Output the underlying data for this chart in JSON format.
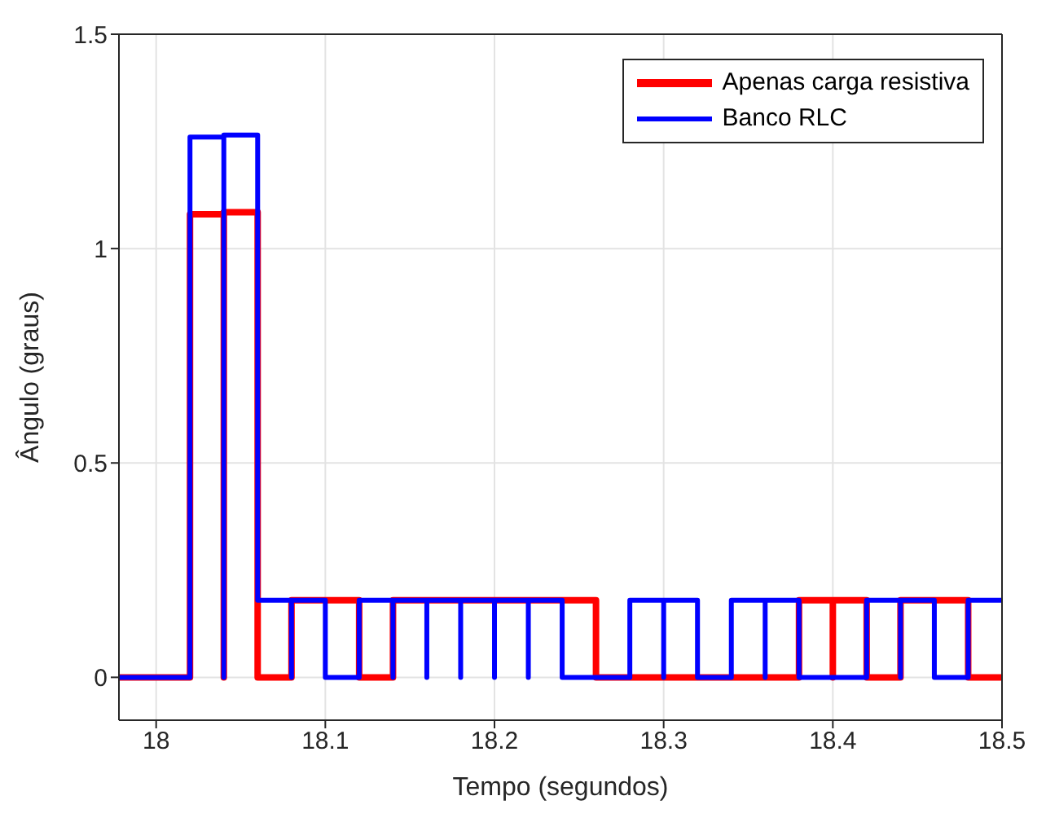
{
  "chart_data": {
    "type": "line",
    "xlabel": "Tempo (segundos)",
    "ylabel": "Ângulo (graus)",
    "xlim": [
      17.978,
      18.5
    ],
    "xticks": [
      18,
      18.1,
      18.2,
      18.3,
      18.4,
      18.5
    ],
    "ylim": [
      -0.1,
      1.5
    ],
    "yticks": [
      0,
      0.5,
      1,
      1.5
    ],
    "grid": true,
    "legend": "top right",
    "marker": "none",
    "line_style": "solid",
    "series": [
      {
        "name": "Apenas carga resistiva",
        "color": "#ff0000",
        "x": [
          17.978,
          18.02,
          18.02,
          18.04,
          18.04,
          18.04,
          18.06,
          18.06,
          18.08,
          18.08,
          18.12,
          18.12,
          18.14,
          18.14,
          18.26,
          18.26,
          18.38,
          18.38,
          18.4,
          18.4,
          18.4,
          18.42,
          18.42,
          18.44,
          18.44,
          18.48,
          18.48,
          18.5
        ],
        "values": [
          0,
          0,
          1.08,
          1.08,
          0,
          1.085,
          1.085,
          0,
          0,
          0.18,
          0.18,
          0,
          0,
          0.18,
          0.18,
          0,
          0,
          0.18,
          0.18,
          0,
          0.18,
          0.18,
          0,
          0,
          0.18,
          0.18,
          0,
          0
        ]
      },
      {
        "name": "Banco RLC",
        "color": "#0000ff",
        "x": [
          17.978,
          18.02,
          18.02,
          18.04,
          18.04,
          18.04,
          18.06,
          18.06,
          18.08,
          18.08,
          18.08,
          18.1,
          18.1,
          18.12,
          18.12,
          18.14,
          18.14,
          18.14,
          18.16,
          18.16,
          18.16,
          18.18,
          18.18,
          18.18,
          18.2,
          18.2,
          18.2,
          18.22,
          18.22,
          18.22,
          18.24,
          18.24,
          18.28,
          18.28,
          18.3,
          18.3,
          18.3,
          18.32,
          18.32,
          18.34,
          18.34,
          18.36,
          18.36,
          18.36,
          18.38,
          18.38,
          18.42,
          18.42,
          18.44,
          18.44,
          18.44,
          18.46,
          18.46,
          18.48,
          18.48,
          18.5
        ],
        "values": [
          0,
          0,
          1.26,
          1.26,
          0,
          1.265,
          1.265,
          0.18,
          0.18,
          0,
          0.18,
          0.18,
          0,
          0,
          0.18,
          0.18,
          0,
          0.18,
          0.18,
          0,
          0.18,
          0.18,
          0,
          0.18,
          0.18,
          0,
          0.18,
          0.18,
          0,
          0.18,
          0.18,
          0,
          0,
          0.18,
          0.18,
          0,
          0.18,
          0.18,
          0,
          0,
          0.18,
          0.18,
          0,
          0.18,
          0.18,
          0,
          0,
          0.18,
          0.18,
          0,
          0.18,
          0.18,
          0,
          0,
          0.18,
          0.18
        ]
      }
    ]
  }
}
